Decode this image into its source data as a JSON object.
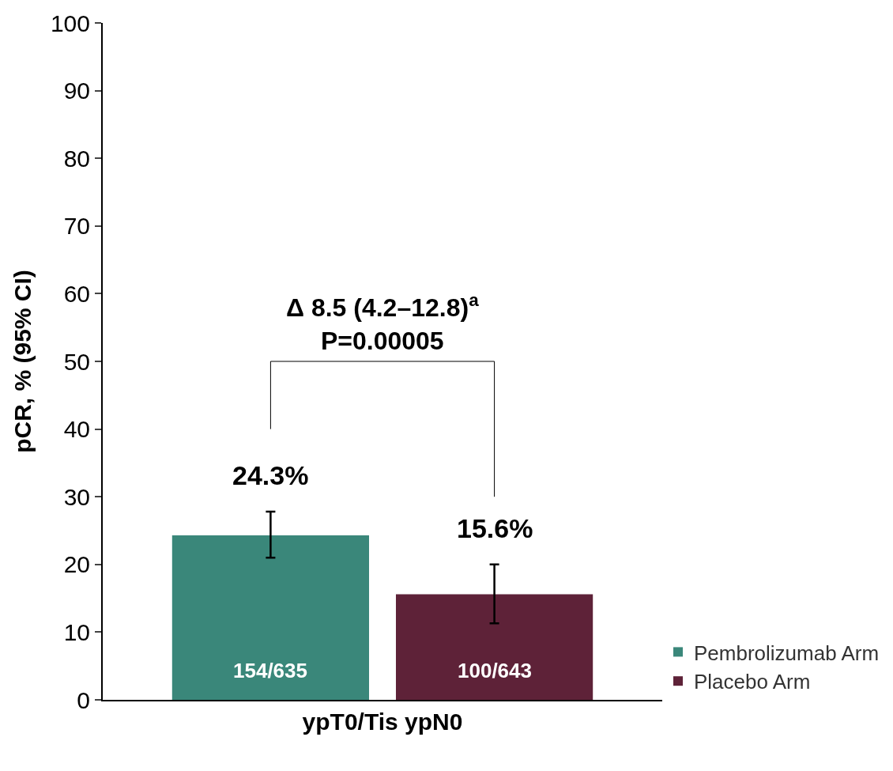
{
  "chart_data": {
    "type": "bar",
    "ylabel": "pCR, % (95% CI)",
    "categories": [
      "ypT0/Tis ypN0"
    ],
    "series": [
      {
        "name": "Pembrolizumab Arm",
        "color": "#3a877a",
        "values": [
          24.3
        ],
        "errors": [
          [
            21.0,
            27.8
          ]
        ],
        "value_labels": [
          "24.3%"
        ]
      },
      {
        "name": "Placebo Arm",
        "color": "#5e2238",
        "values": [
          15.6
        ],
        "errors": [
          [
            11.3,
            20.0
          ]
        ],
        "value_labels": [
          "15.6%"
        ]
      }
    ],
    "annotations": [
      "Δ 8.5 (4.2–12.8)$^{a}$\nP=0.00005",
      "154/635",
      "100/643"
    ],
    "ylim": [
      0,
      100
    ],
    "yticks": [
      0,
      10,
      20,
      30,
      40,
      50,
      60,
      70,
      80,
      90,
      100
    ],
    "legend": "bottom right"
  }
}
